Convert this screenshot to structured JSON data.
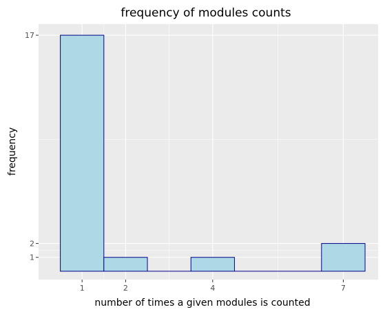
{
  "chart_data": {
    "type": "bar",
    "title": "frequency of modules counts",
    "xlabel": "number of times a given modules is counted",
    "ylabel": "frequency",
    "bins": [
      {
        "x_start": 0.5,
        "x_end": 1.5,
        "value": 17
      },
      {
        "x_start": 1.5,
        "x_end": 2.5,
        "value": 1
      },
      {
        "x_start": 2.5,
        "x_end": 3.5,
        "value": 0
      },
      {
        "x_start": 3.5,
        "x_end": 4.5,
        "value": 1
      },
      {
        "x_start": 4.5,
        "x_end": 5.5,
        "value": 0
      },
      {
        "x_start": 5.5,
        "x_end": 6.5,
        "value": 0
      },
      {
        "x_start": 6.5,
        "x_end": 7.5,
        "value": 2
      }
    ],
    "x_ticks": [
      1,
      2,
      4,
      7
    ],
    "y_ticks": [
      1,
      2,
      17
    ],
    "xlim": [
      0,
      7.8
    ],
    "ylim": [
      -0.6,
      17.8
    ],
    "grid": true,
    "bar_fill": "#add8e6",
    "bar_stroke": "#00008b",
    "panel_background": "#ebebeb",
    "gridline_color": "#ffffff"
  }
}
